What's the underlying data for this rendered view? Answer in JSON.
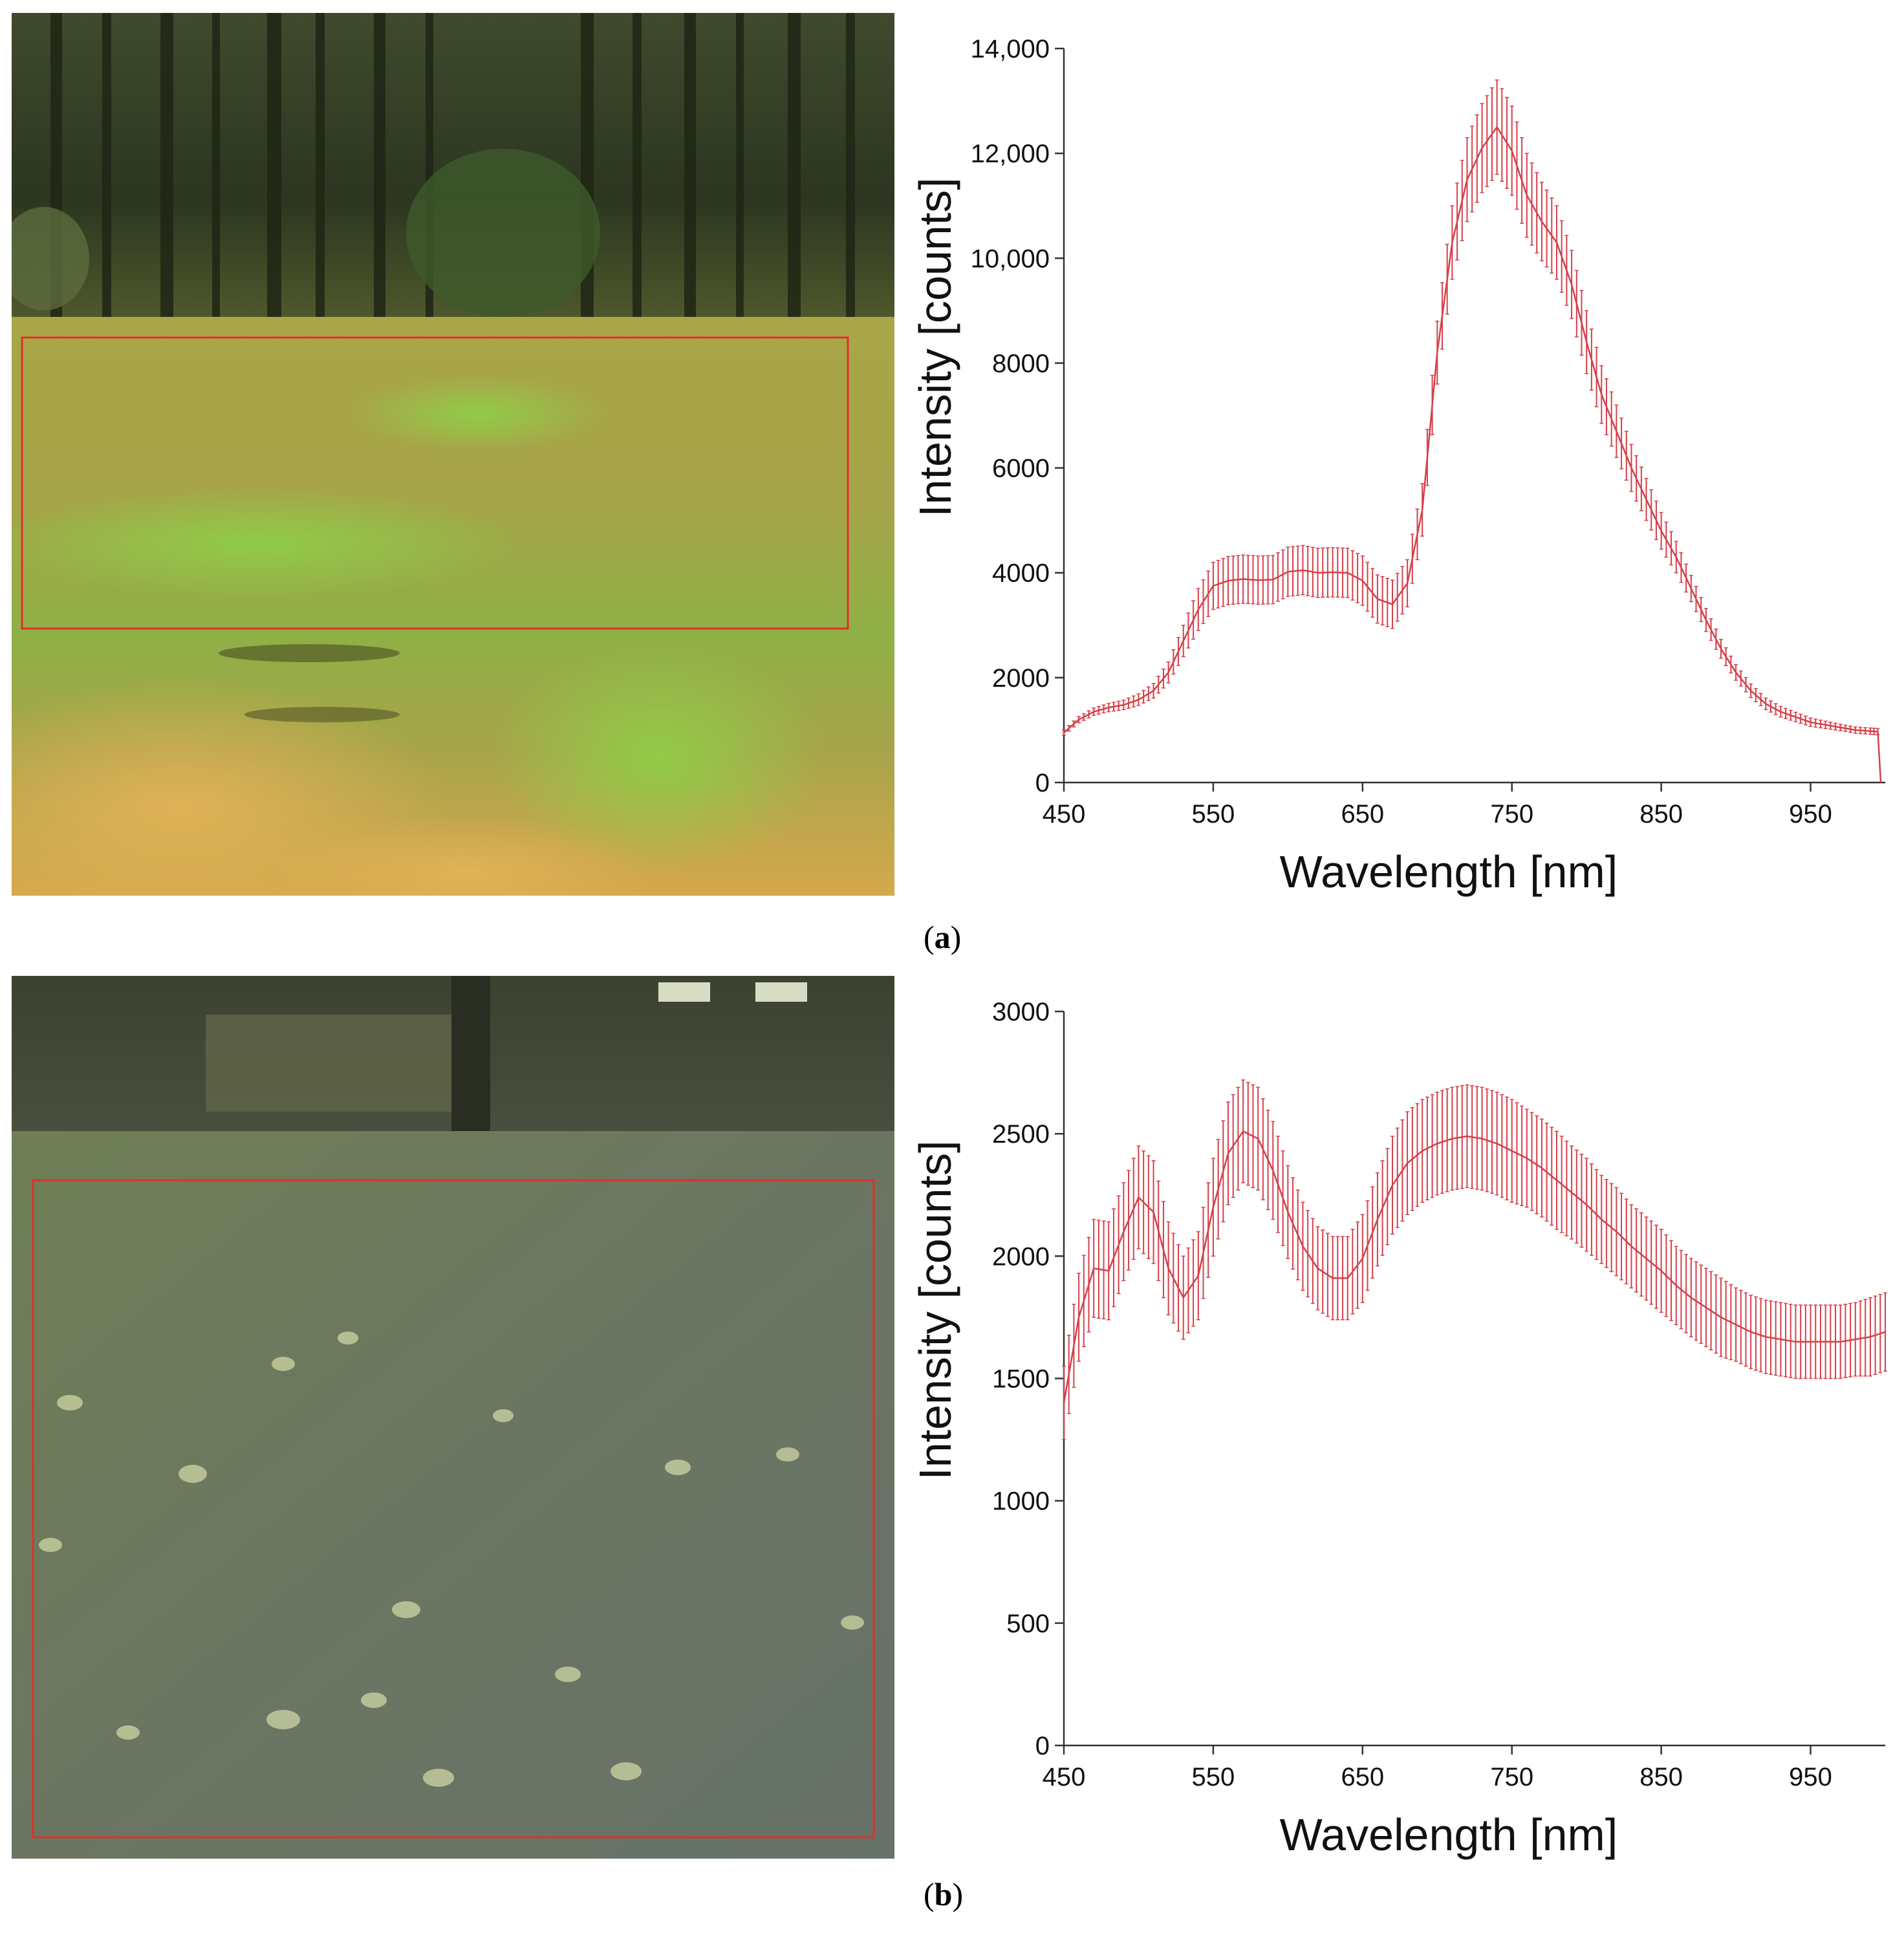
{
  "figure": {
    "panel_a_label": "a",
    "panel_b_label": "b"
  },
  "photos": [
    {
      "scene": "meadow in front of forest",
      "roi_color": "#e0302a"
    },
    {
      "scene": "lawn with fallen leaves in front of hedge",
      "roi_color": "#e0302a"
    }
  ],
  "colors": {
    "series": "#d5404a",
    "axis": "#333333",
    "text": "#111111"
  },
  "chart_data": [
    {
      "type": "line",
      "xlabel": "Wavelength [nm]",
      "ylabel": "Intensity [counts]",
      "xlim": [
        450,
        1000
      ],
      "ylim": [
        0,
        14000
      ],
      "x_ticks": [
        450,
        550,
        650,
        750,
        850,
        950
      ],
      "y_ticks": [
        0,
        2000,
        4000,
        6000,
        8000,
        10000,
        12000,
        14000
      ],
      "y_tick_labels": [
        "0",
        "2000",
        "4000",
        "6000",
        "8000",
        "10,000",
        "12,000",
        "14,000"
      ],
      "error_bars": true,
      "grid": false,
      "series": [
        {
          "x": [
            450,
            460,
            470,
            480,
            490,
            500,
            510,
            520,
            530,
            540,
            550,
            560,
            570,
            580,
            590,
            600,
            610,
            620,
            630,
            640,
            650,
            660,
            670,
            680,
            690,
            700,
            710,
            720,
            730,
            740,
            750,
            760,
            770,
            780,
            790,
            800,
            810,
            820,
            830,
            840,
            850,
            860,
            870,
            880,
            890,
            900,
            910,
            920,
            930,
            940,
            950,
            960,
            970,
            980,
            990,
            995,
            997
          ],
          "y": [
            950,
            1200,
            1350,
            1430,
            1480,
            1580,
            1750,
            2100,
            2700,
            3300,
            3750,
            3850,
            3880,
            3860,
            3870,
            4020,
            4050,
            4000,
            4010,
            4000,
            3850,
            3500,
            3400,
            3800,
            5200,
            8200,
            10300,
            11500,
            12100,
            12500,
            12050,
            11200,
            10700,
            10300,
            9500,
            8400,
            7400,
            6700,
            6000,
            5400,
            4800,
            4300,
            3700,
            3100,
            2550,
            2100,
            1750,
            1500,
            1350,
            1250,
            1150,
            1100,
            1050,
            1000,
            980,
            970,
            0
          ],
          "err": [
            50,
            60,
            70,
            80,
            90,
            110,
            140,
            200,
            300,
            400,
            450,
            460,
            460,
            460,
            460,
            470,
            470,
            470,
            470,
            470,
            470,
            460,
            460,
            450,
            500,
            600,
            700,
            800,
            850,
            900,
            850,
            800,
            750,
            700,
            650,
            600,
            550,
            500,
            450,
            400,
            350,
            300,
            250,
            220,
            180,
            150,
            130,
            110,
            100,
            90,
            80,
            70,
            60,
            60,
            60,
            60,
            0
          ]
        }
      ]
    },
    {
      "type": "line",
      "xlabel": "Wavelength [nm]",
      "ylabel": "Intensity [counts]",
      "xlim": [
        450,
        1000
      ],
      "ylim": [
        0,
        3000
      ],
      "x_ticks": [
        450,
        550,
        650,
        750,
        850,
        950
      ],
      "y_ticks": [
        0,
        500,
        1000,
        1500,
        2000,
        2500,
        3000
      ],
      "y_tick_labels": [
        "0",
        "500",
        "1000",
        "1500",
        "2000",
        "2500",
        "3000"
      ],
      "error_bars": true,
      "grid": false,
      "series": [
        {
          "x": [
            450,
            460,
            470,
            480,
            490,
            500,
            510,
            520,
            530,
            540,
            550,
            560,
            570,
            580,
            590,
            600,
            610,
            620,
            630,
            640,
            650,
            660,
            670,
            680,
            690,
            700,
            710,
            720,
            730,
            740,
            750,
            760,
            770,
            780,
            790,
            800,
            810,
            820,
            830,
            840,
            850,
            860,
            870,
            880,
            890,
            900,
            910,
            920,
            930,
            940,
            950,
            960,
            970,
            980,
            990,
            1000
          ],
          "y": [
            1400,
            1750,
            1950,
            1940,
            2100,
            2240,
            2180,
            1950,
            1830,
            1920,
            2200,
            2420,
            2510,
            2480,
            2350,
            2180,
            2040,
            1950,
            1910,
            1910,
            1990,
            2150,
            2290,
            2380,
            2430,
            2460,
            2480,
            2490,
            2480,
            2460,
            2430,
            2400,
            2360,
            2310,
            2260,
            2210,
            2150,
            2100,
            2040,
            1990,
            1940,
            1880,
            1830,
            1790,
            1750,
            1720,
            1690,
            1670,
            1660,
            1650,
            1650,
            1650,
            1650,
            1660,
            1670,
            1690
          ],
          "err": [
            150,
            180,
            200,
            200,
            200,
            210,
            210,
            190,
            170,
            180,
            200,
            210,
            210,
            210,
            200,
            190,
            180,
            170,
            170,
            170,
            180,
            190,
            200,
            210,
            210,
            210,
            210,
            210,
            210,
            210,
            210,
            200,
            200,
            200,
            190,
            190,
            180,
            180,
            170,
            170,
            170,
            160,
            160,
            160,
            160,
            150,
            150,
            150,
            150,
            150,
            150,
            150,
            150,
            150,
            160,
            160
          ]
        }
      ]
    }
  ]
}
